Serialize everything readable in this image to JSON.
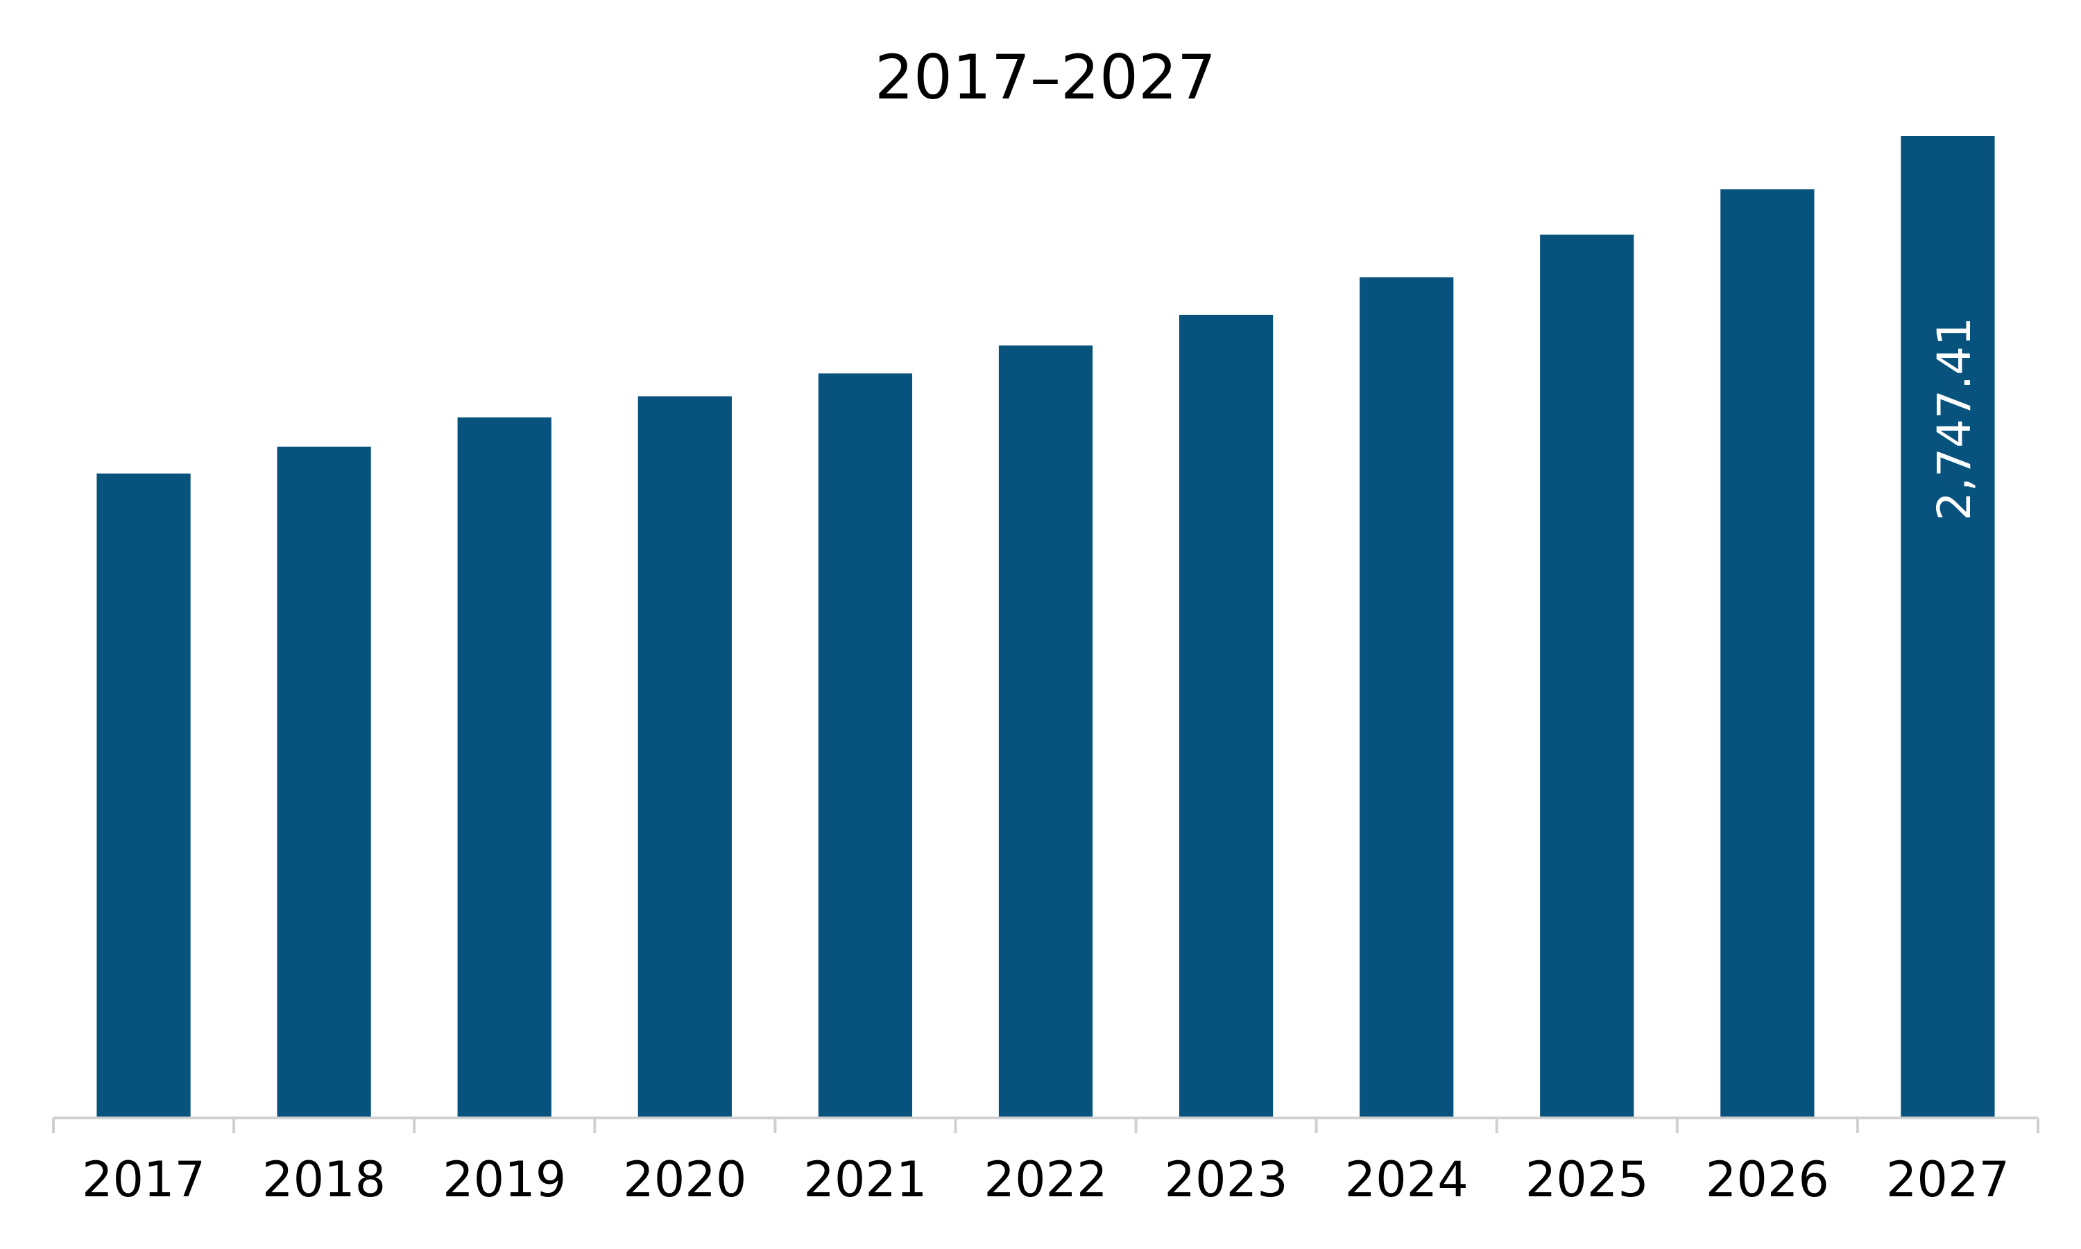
{
  "chart_data": {
    "type": "bar",
    "title": "2017–2027",
    "categories": [
      "2017",
      "2018",
      "2019",
      "2020",
      "2021",
      "2022",
      "2023",
      "2024",
      "2025",
      "2026",
      "2027"
    ],
    "values": [
      1803,
      1878,
      1960,
      2019,
      2083,
      2161,
      2247,
      2352,
      2471,
      2598,
      2747.41
    ],
    "value_labels": [
      null,
      null,
      null,
      null,
      null,
      null,
      null,
      null,
      null,
      null,
      "2,747.41"
    ],
    "color": "#08527e"
  }
}
